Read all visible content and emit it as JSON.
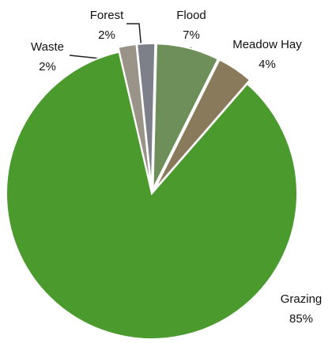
{
  "chart_data": {
    "type": "pie",
    "categories": [
      "Waste",
      "Forest",
      "Flood",
      "Meadow Hay",
      "Grazing"
    ],
    "values": [
      2,
      2,
      7,
      4,
      85
    ],
    "value_labels": [
      "2%",
      "2%",
      "7%",
      "4%",
      "85%"
    ],
    "colors": [
      "#9a9488",
      "#7d8088",
      "#6f8f5a",
      "#8a7a5c",
      "#4a9a2e"
    ]
  }
}
